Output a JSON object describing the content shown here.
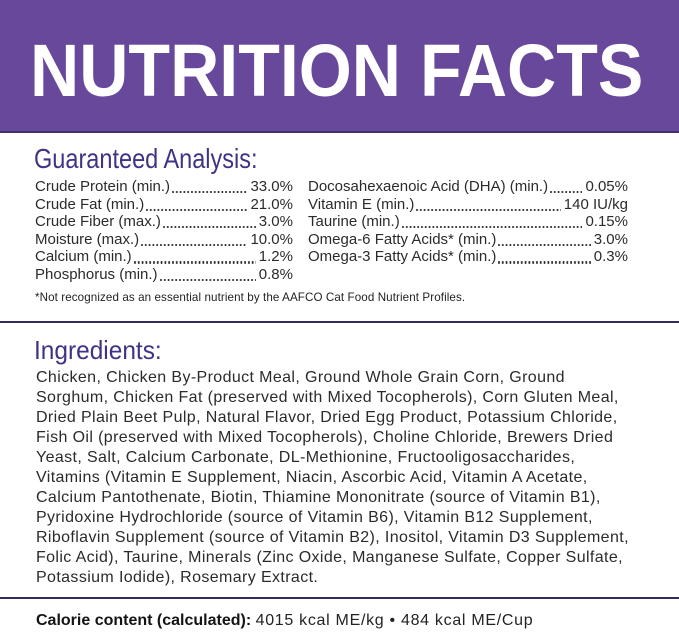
{
  "colors": {
    "band_purple": "#67489b",
    "band_edge": "#43306c",
    "heading_indigo": "#3f3484",
    "divider_indigo": "#352a5e",
    "body_text": "#232323",
    "title_white": "#ffffff"
  },
  "header": {
    "title": "NUTRITION FACTS"
  },
  "guaranteed_analysis": {
    "heading": "Guaranteed Analysis:",
    "left_rows": [
      {
        "label": "Crude Protein (min.)",
        "value": "33.0%"
      },
      {
        "label": "Crude Fat (min.)",
        "value": "21.0%"
      },
      {
        "label": "Crude Fiber (max.)",
        "value": "3.0%"
      },
      {
        "label": "Moisture (max.)",
        "value": "10.0%"
      },
      {
        "label": "Calcium (min.)",
        "value": "1.2%"
      },
      {
        "label": "Phosphorus (min.)",
        "value": "0.8%"
      }
    ],
    "right_rows": [
      {
        "label": "Docosahexaenoic Acid (DHA) (min.)",
        "value": "0.05%"
      },
      {
        "label": "Vitamin E (min.)",
        "value": "140 IU/kg"
      },
      {
        "label": "Taurine (min.)",
        "value": "0.15%"
      },
      {
        "label": "Omega-6 Fatty Acids* (min.)",
        "value": "3.0%"
      },
      {
        "label": "Omega-3 Fatty Acids* (min.)",
        "value": "0.3%"
      }
    ],
    "footnote": "*Not recognized as an essential nutrient by the AAFCO Cat Food Nutrient Profiles."
  },
  "ingredients": {
    "heading": "Ingredients:",
    "text": "Chicken, Chicken By-Product Meal, Ground Whole Grain Corn, Ground\nSorghum, Chicken Fat (preserved with Mixed Tocopherols), Corn Gluten Meal,\nDried Plain Beet Pulp, Natural Flavor, Dried Egg Product, Potassium Chloride,\nFish Oil (preserved with Mixed Tocopherols), Choline Chloride, Brewers Dried\nYeast, Salt, Calcium Carbonate, DL-Methionine, Fructooligosaccharides,\nVitamins (Vitamin E Supplement, Niacin, Ascorbic Acid, Vitamin A Acetate,\nCalcium Pantothenate, Biotin, Thiamine Mononitrate (source of Vitamin B1),\nPyridoxine Hydrochloride (source of Vitamin B6), Vitamin B12 Supplement,\nRiboflavin Supplement (source of Vitamin B2), Inositol, Vitamin D3 Supplement,\nFolic Acid), Taurine, Minerals (Zinc Oxide, Manganese Sulfate, Copper Sulfate,\nPotassium Iodide), Rosemary Extract."
  },
  "calorie": {
    "label": "Calorie content (calculated):",
    "value": "4015 kcal ME/kg • 484 kcal ME/Cup"
  }
}
